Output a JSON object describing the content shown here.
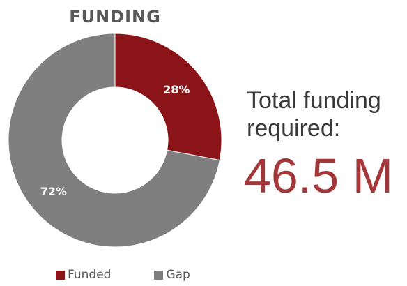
{
  "colors": {
    "funded": "#8b1419",
    "gap": "#7f7f7f",
    "accent": "#a4373a"
  },
  "side": {
    "line1": "Total funding",
    "line2": "required:",
    "value": "46.5 M"
  },
  "chart_data": {
    "type": "pie",
    "style": "donut",
    "title": "FUNDING",
    "categories": [
      "Funded",
      "Gap"
    ],
    "values": [
      28,
      72
    ],
    "data_labels": [
      "28%",
      "72%"
    ],
    "legend": "bottom"
  }
}
